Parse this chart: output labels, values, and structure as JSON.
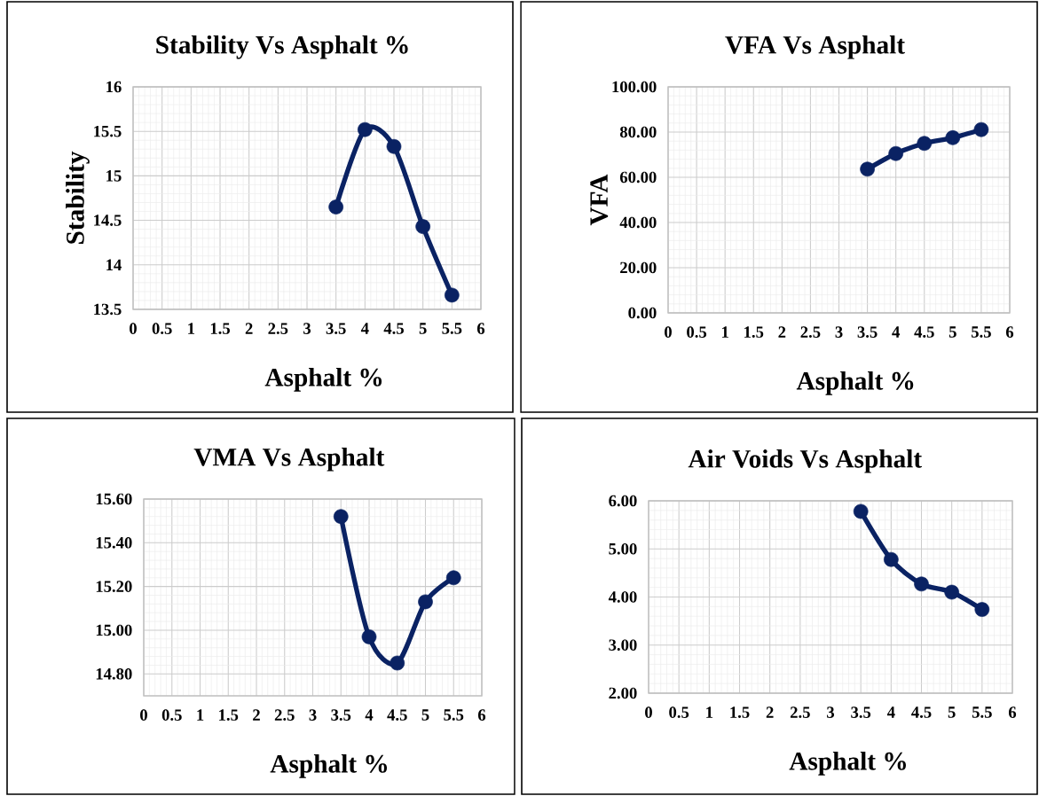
{
  "chart_data": [
    {
      "type": "line",
      "title": "Stability Vs Asphalt %",
      "xlabel": "Asphalt %",
      "ylabel": "Stability",
      "x": [
        3.5,
        4,
        4.5,
        5,
        5.5
      ],
      "series": [
        {
          "color": "#0a2263",
          "values": [
            14.65,
            15.52,
            15.33,
            14.43,
            13.66
          ]
        }
      ],
      "xlim": [
        0,
        6
      ],
      "ylim": [
        13.5,
        16
      ],
      "xticks": [
        0,
        0.5,
        1,
        1.5,
        2,
        2.5,
        3,
        3.5,
        4,
        4.5,
        5,
        5.5,
        6
      ],
      "yticks": [
        13.5,
        14,
        14.5,
        15,
        15.5,
        16
      ],
      "grid": true,
      "marker": "circle"
    },
    {
      "type": "line",
      "title": "VFA Vs Asphalt",
      "xlabel": "Asphalt %",
      "ylabel": "VFA",
      "x": [
        3.5,
        4,
        4.5,
        5,
        5.5
      ],
      "series": [
        {
          "color": "#0a2263",
          "values": [
            63.6,
            70.5,
            75.0,
            77.5,
            81.1
          ]
        }
      ],
      "xlim": [
        0,
        6
      ],
      "ylim": [
        0,
        100
      ],
      "xticks": [
        0,
        0.5,
        1,
        1.5,
        2,
        2.5,
        3,
        3.5,
        4,
        4.5,
        5,
        5.5,
        6
      ],
      "yticks": [
        {
          "value": 0,
          "label": "0.00"
        },
        {
          "value": 20,
          "label": "20.00"
        },
        {
          "value": 40,
          "label": "40.00"
        },
        {
          "value": 60,
          "label": "60.00"
        },
        {
          "value": 80,
          "label": "80.00"
        },
        {
          "value": 100,
          "label": "100.00"
        }
      ],
      "grid": true,
      "marker": "circle"
    },
    {
      "type": "line",
      "title": "VMA Vs Asphalt",
      "xlabel": "Asphalt %",
      "x": [
        3.5,
        4,
        4.5,
        5,
        5.5
      ],
      "series": [
        {
          "color": "#0a2263",
          "values": [
            15.52,
            14.97,
            14.85,
            15.13,
            15.24
          ]
        }
      ],
      "xlim": [
        0,
        6
      ],
      "ylim": [
        14.7,
        15.6
      ],
      "xticks": [
        0,
        0.5,
        1,
        1.5,
        2,
        2.5,
        3,
        3.5,
        4,
        4.5,
        5,
        5.5,
        6
      ],
      "yticks": [
        {
          "value": 14.8,
          "label": "14.80"
        },
        {
          "value": 15.0,
          "label": "15.00"
        },
        {
          "value": 15.2,
          "label": "15.20"
        },
        {
          "value": 15.4,
          "label": "15.40"
        },
        {
          "value": 15.6,
          "label": "15.60"
        }
      ],
      "grid": true,
      "marker": "circle"
    },
    {
      "type": "line",
      "title": "Air Voids Vs Asphalt",
      "xlabel": "Asphalt %",
      "x": [
        3.5,
        4,
        4.5,
        5,
        5.5
      ],
      "series": [
        {
          "color": "#0a2263",
          "values": [
            5.78,
            4.78,
            4.27,
            4.1,
            3.74
          ]
        }
      ],
      "xlim": [
        0,
        6
      ],
      "ylim": [
        2,
        6
      ],
      "xticks": [
        0,
        0.5,
        1,
        1.5,
        2,
        2.5,
        3,
        3.5,
        4,
        4.5,
        5,
        5.5,
        6
      ],
      "yticks": [
        {
          "value": 2,
          "label": "2.00"
        },
        {
          "value": 3,
          "label": "3.00"
        },
        {
          "value": 4,
          "label": "4.00"
        },
        {
          "value": 5,
          "label": "5.00"
        },
        {
          "value": 6,
          "label": "6.00"
        }
      ],
      "grid": true,
      "marker": "circle"
    }
  ]
}
